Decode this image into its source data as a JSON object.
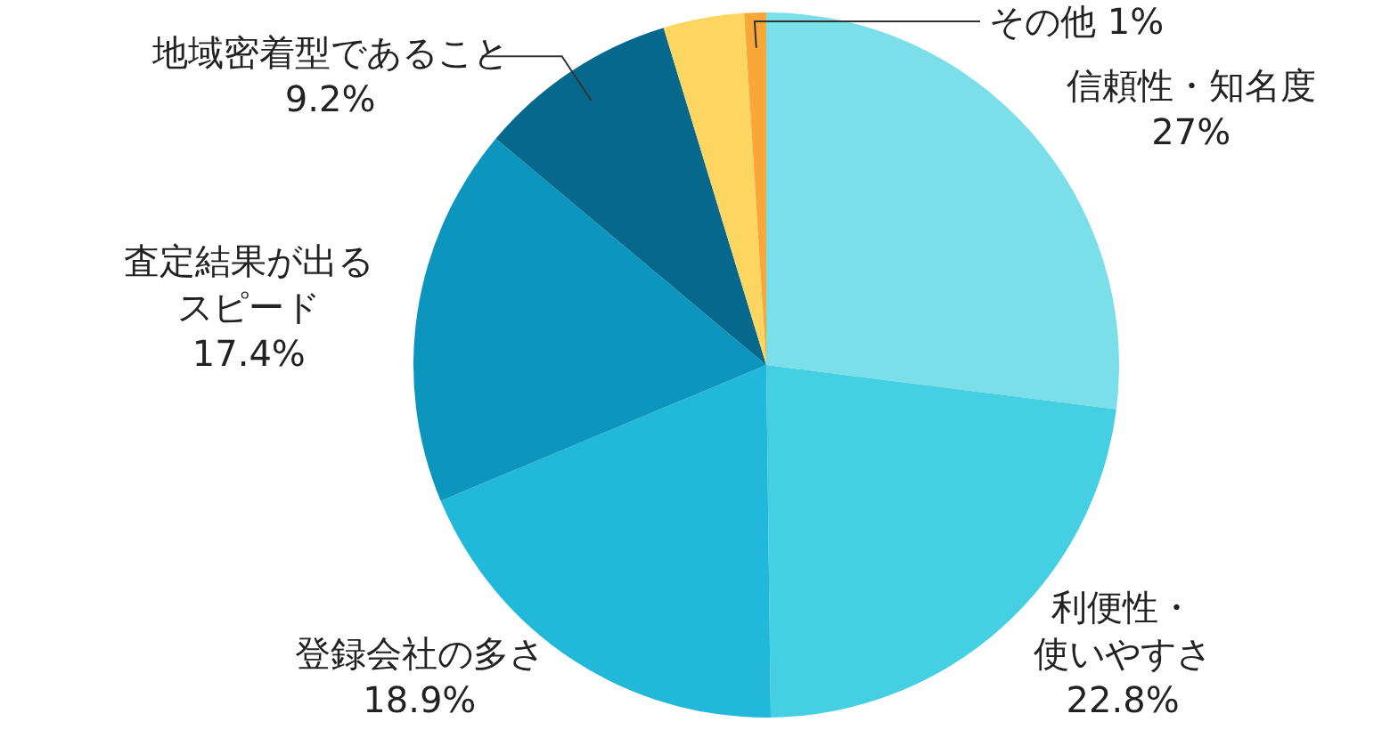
{
  "chart_data": {
    "type": "pie",
    "categories": [
      "信頼性・知名度",
      "利便性・使いやすさ",
      "登録会社の多さ",
      "査定結果が出るスピード",
      "地域密着型であること",
      null,
      "その他"
    ],
    "values": [
      27,
      22.8,
      18.9,
      17.4,
      9.2,
      3.7,
      1
    ],
    "value_labels": [
      "27%",
      "22.8%",
      "18.9%",
      "17.4%",
      "9.2%",
      null,
      "1%"
    ],
    "colors": [
      "#7adfe8",
      "#45cfe3",
      "#22b8da",
      "#0d96bd",
      "#07688d",
      "#fdd662",
      "#f9a838"
    ]
  }
}
